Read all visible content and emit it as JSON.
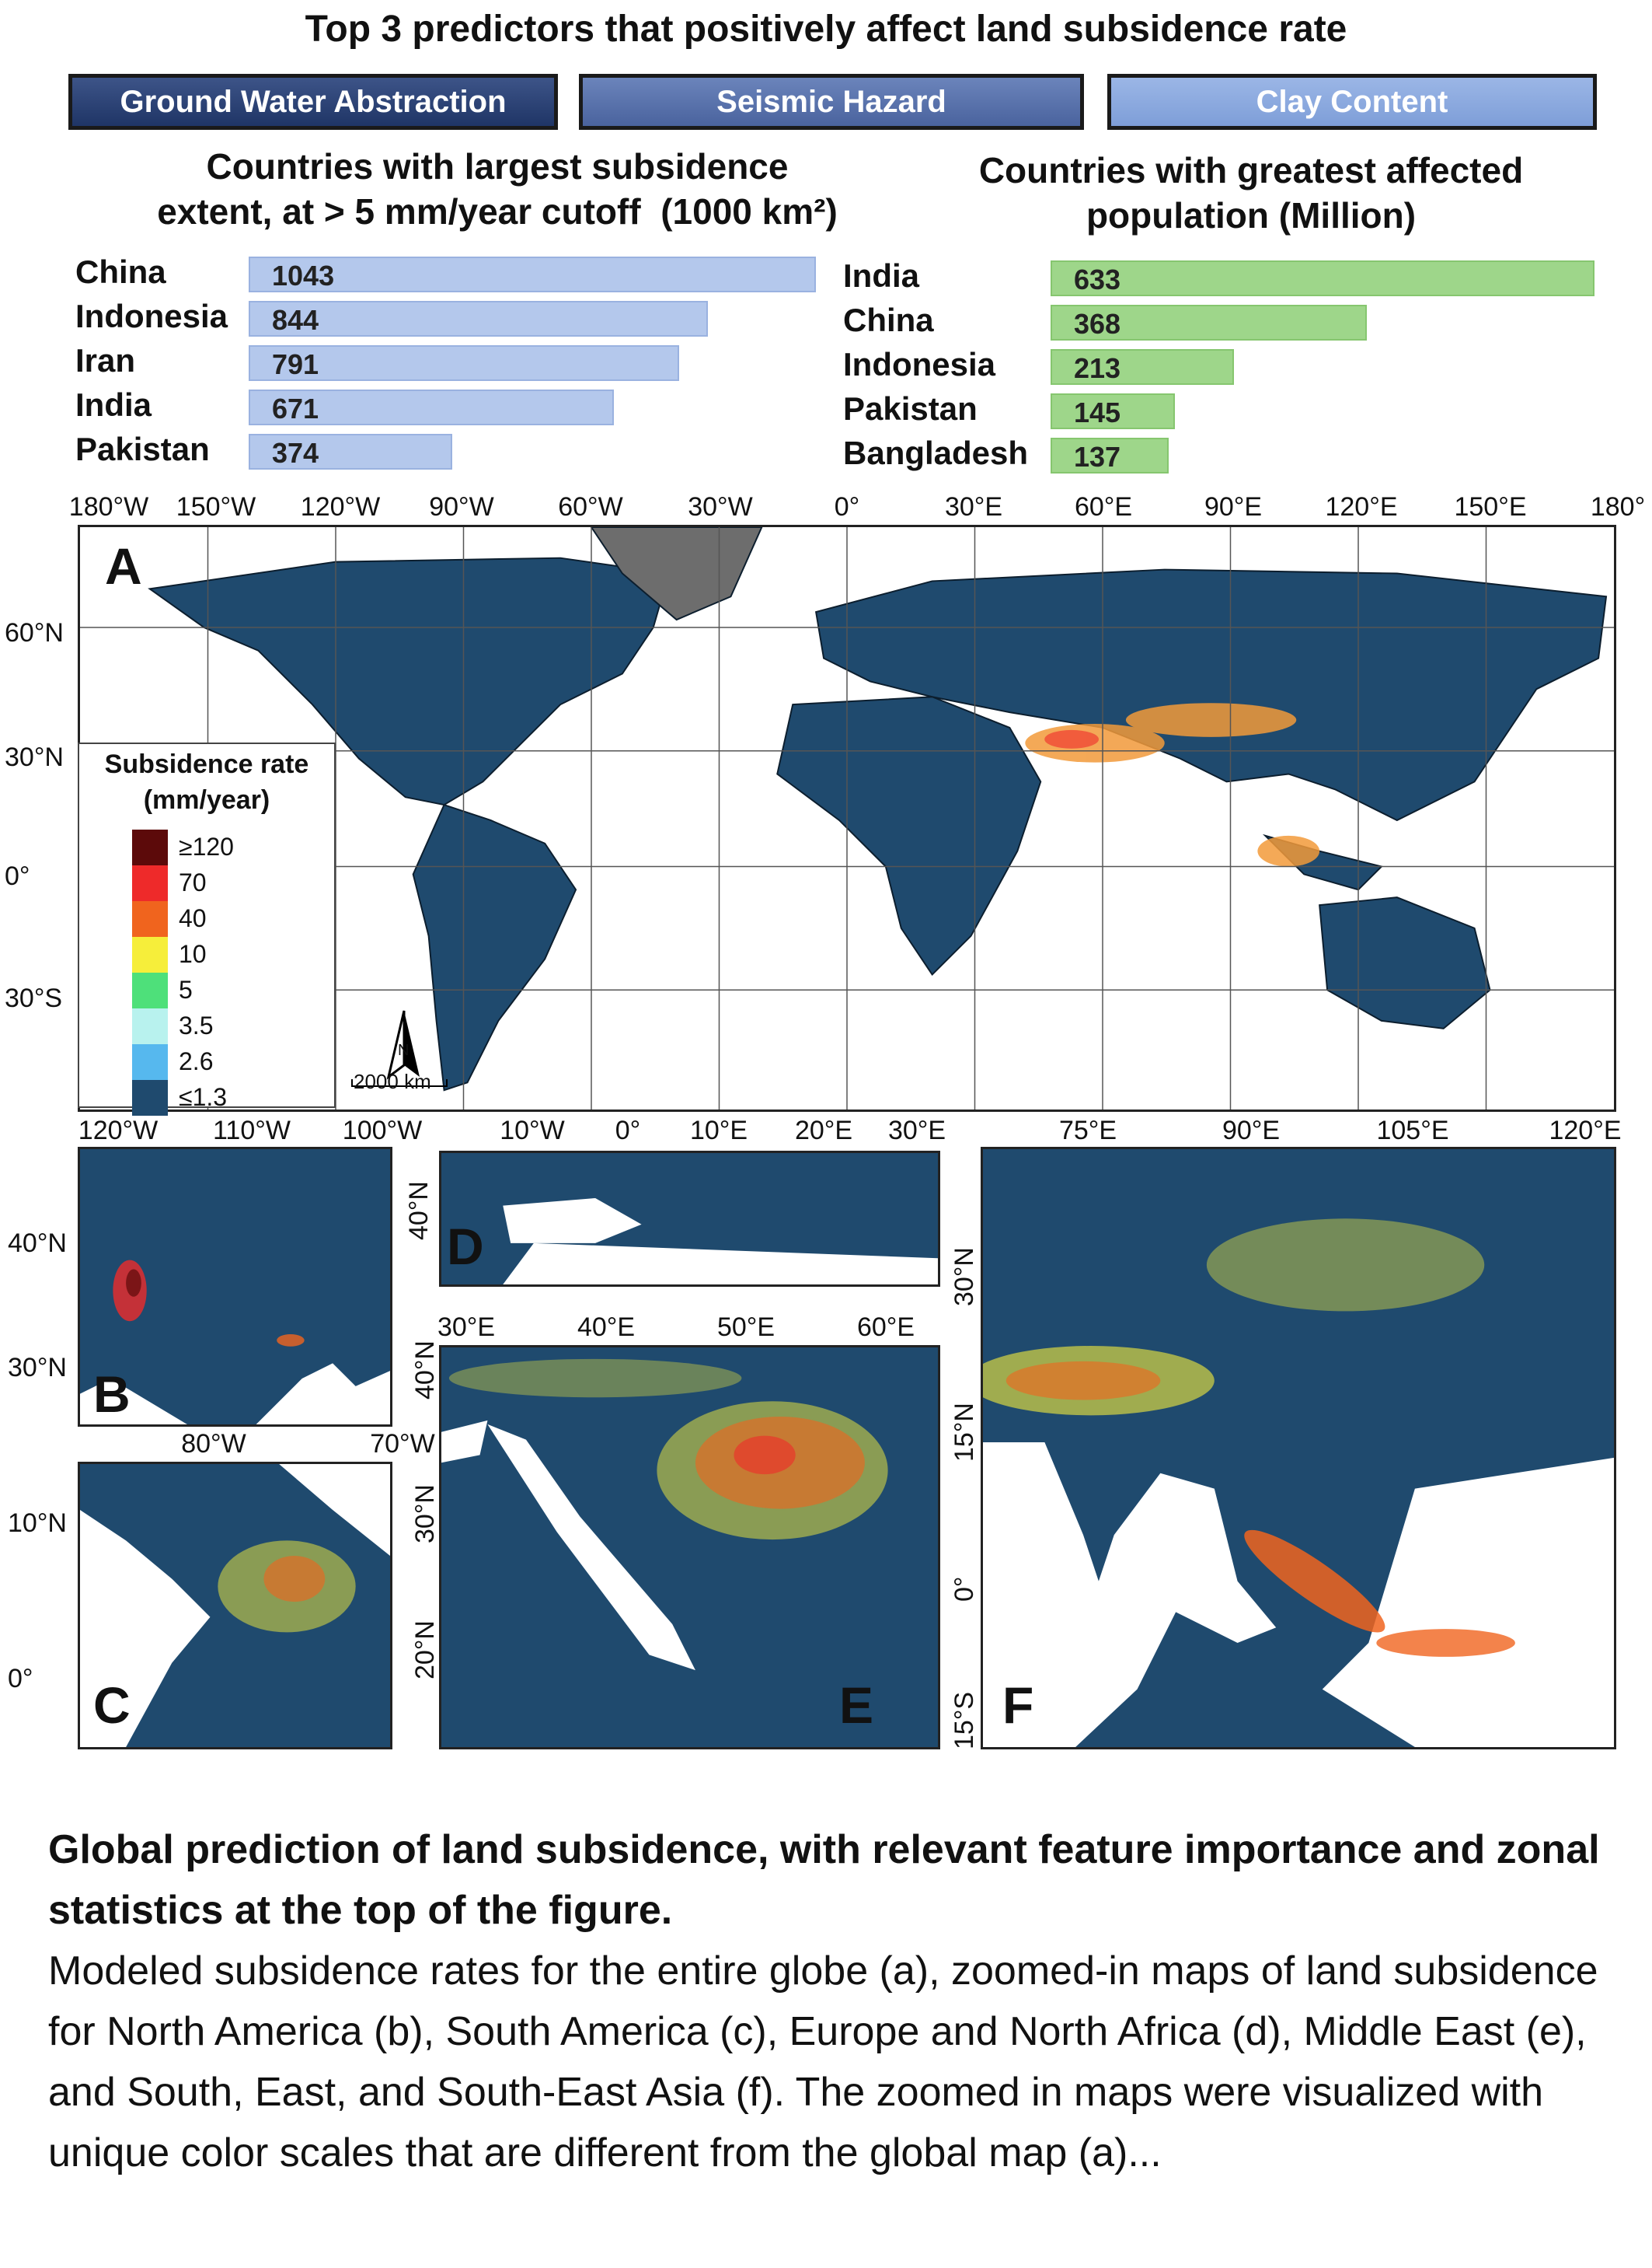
{
  "title": "Top 3 predictors that positively affect land subsidence rate",
  "predictors": [
    "Ground Water Abstraction",
    "Seismic Hazard",
    "Clay Content"
  ],
  "extent_chart": {
    "title_line1": "Countries with largest subsidence",
    "title_line2": "extent, at > 5 mm/year cutoff",
    "unit": "(1000 km²)",
    "countries": [
      "China",
      "Indonesia",
      "Iran",
      "India",
      "Pakistan"
    ],
    "values": [
      1043,
      844,
      791,
      671,
      374
    ],
    "color": "#b4c8ec"
  },
  "population_chart": {
    "title_line1": "Countries with greatest affected",
    "title_line2": "population (Million)",
    "countries": [
      "India",
      "China",
      "Indonesia",
      "Pakistan",
      "Bangladesh"
    ],
    "values": [
      633,
      368,
      213,
      145,
      137
    ],
    "color": "#9ed68a"
  },
  "map_a": {
    "label": "A",
    "lon_labels": [
      "180°W",
      "150°W",
      "120°W",
      "90°W",
      "60°W",
      "30°W",
      "0°",
      "30°E",
      "60°E",
      "90°E",
      "120°E",
      "150°E",
      "180°"
    ],
    "lat_labels": [
      "60°N",
      "30°N",
      "0°",
      "30°S"
    ],
    "scale_bar": "2000 km",
    "north_label": "N"
  },
  "legend": {
    "title_line1": "Subsidence rate",
    "title_line2": "(mm/year)",
    "classes": [
      {
        "label": "≥120",
        "color": "#5c0a0a"
      },
      {
        "label": "70",
        "color": "#ee2a2a"
      },
      {
        "label": "40",
        "color": "#f0641e"
      },
      {
        "label": "10",
        "color": "#f6ee3a"
      },
      {
        "label": "5",
        "color": "#4ee07a"
      },
      {
        "label": "3.5",
        "color": "#b8f2ee"
      },
      {
        "label": "2.6",
        "color": "#56b8ee"
      },
      {
        "label": "≤1.3",
        "color": "#1f4a6e"
      }
    ]
  },
  "map_b": {
    "label": "B",
    "lon_labels": [
      "120°W",
      "110°W",
      "100°W"
    ],
    "lat_labels": [
      "40°N",
      "30°N"
    ]
  },
  "map_c": {
    "label": "C",
    "lon_labels": [
      "80°W",
      "70°W"
    ],
    "lat_labels": [
      "10°N",
      "0°"
    ]
  },
  "map_d": {
    "label": "D",
    "lon_labels": [
      "10°W",
      "0°",
      "10°E",
      "20°E",
      "30°E"
    ],
    "lat_labels": [
      "40°N"
    ]
  },
  "map_e": {
    "label": "E",
    "lon_labels": [
      "30°E",
      "40°E",
      "50°E",
      "60°E"
    ],
    "lat_labels": [
      "40°N",
      "30°N",
      "20°N"
    ]
  },
  "map_f": {
    "label": "F",
    "lon_labels": [
      "75°E",
      "90°E",
      "105°E",
      "120°E"
    ],
    "lat_labels": [
      "30°N",
      "15°N",
      "0°",
      "15°S"
    ]
  },
  "caption": {
    "bold": "Global prediction of land subsidence, with relevant feature importance and zonal statistics at the top of the figure.",
    "body": "Modeled subsidence rates for the entire globe (a), zoomed-in maps of land subsidence for North America (b), South America (c), Europe and North Africa (d), Middle East (e), and South, East, and South-East Asia (f). The zoomed in maps were visualized with unique color scales that are different from the global map (a)..."
  }
}
